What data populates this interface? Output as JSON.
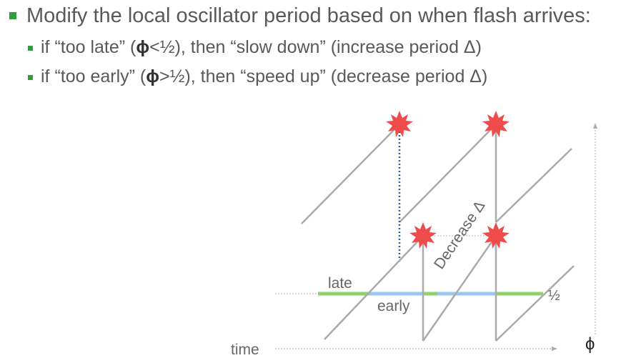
{
  "bullets": {
    "main": "Modify the local oscillator period based on when flash arrives:",
    "sub1": {
      "prefix": "if “too late” (",
      "phi": "ϕ",
      "suffix": "<½), then “slow down” (increase period Δ)"
    },
    "sub2": {
      "prefix": "if “too early” (",
      "phi": "ϕ",
      "suffix": ">½), then “speed up” (decrease period Δ)"
    }
  },
  "diagram": {
    "late_label": "late",
    "early_label": "early",
    "half_label": "½",
    "decrease_label": "Decrease Δ",
    "time_label": "time",
    "phi_label": "ϕ",
    "colors": {
      "sawtooth": "#aaaaaa",
      "late": "#8fd16a",
      "early": "#9cc8f0",
      "flash": "#f04b4b",
      "dotted_blue": "#2a5fb0",
      "bullet": "#2f9e3f"
    }
  }
}
